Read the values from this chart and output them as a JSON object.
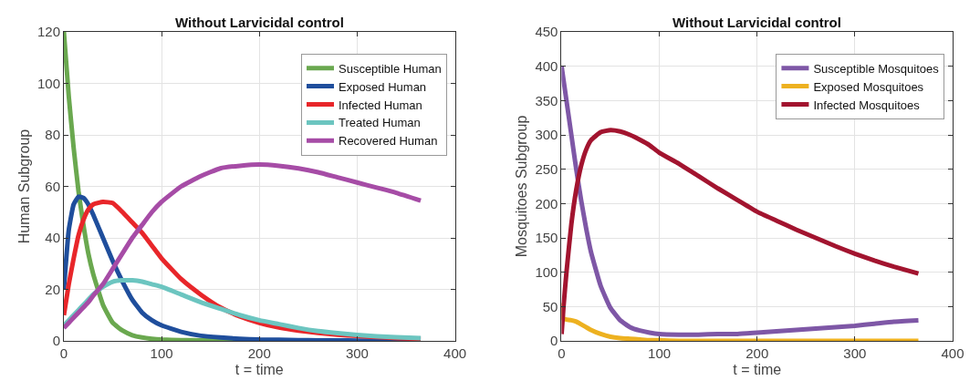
{
  "chart_data": [
    {
      "type": "line",
      "title": "Without Larvicidal control",
      "xlabel": "t = time",
      "ylabel": "Human Subgroup",
      "x": [
        0,
        5,
        10,
        15,
        20,
        25,
        30,
        40,
        50,
        60,
        70,
        80,
        90,
        100,
        120,
        140,
        160,
        180,
        200,
        220,
        240,
        260,
        280,
        300,
        320,
        340,
        365
      ],
      "series": [
        {
          "name": "Susceptible Human",
          "color": "#6aa84f",
          "values": [
            120,
            95,
            75,
            58,
            45,
            34,
            26,
            14,
            7,
            4,
            2.2,
            1.3,
            0.8,
            0.5,
            0.3,
            0.2,
            0.1,
            0.1,
            0,
            null,
            null,
            null,
            null,
            null,
            null,
            null,
            null
          ]
        },
        {
          "name": "Exposed Human",
          "color": "#1f4e9c",
          "values": [
            20,
            43,
            53,
            56,
            55.5,
            53,
            49,
            40,
            31,
            23,
            16,
            11,
            8,
            6,
            3.5,
            2,
            1.3,
            0.8,
            0.5,
            0.4,
            0.3,
            0.2,
            0.2,
            0.1,
            0.1,
            0.1,
            0.1
          ]
        },
        {
          "name": "Infected Human",
          "color": "#e8262a",
          "values": [
            10,
            22,
            32,
            41,
            47,
            51,
            53,
            54,
            53.5,
            50,
            46,
            42,
            37,
            32,
            24,
            18,
            13,
            9.5,
            7,
            5.2,
            4,
            3.1,
            2.4,
            1.9,
            1.5,
            1.1,
            0.8
          ]
        },
        {
          "name": "Treated Human",
          "color": "#6cc5c0",
          "values": [
            6,
            8,
            10,
            12,
            14,
            16,
            18,
            21,
            23,
            23.5,
            23.5,
            23,
            22,
            21,
            18,
            15,
            12.5,
            10,
            8,
            6.5,
            5,
            3.8,
            3,
            2.3,
            1.8,
            1.4,
            1.1
          ]
        },
        {
          "name": "Recovered Human",
          "color": "#a64ca6",
          "values": [
            5,
            7,
            9,
            11,
            13,
            15,
            17.5,
            22,
            28,
            34,
            40,
            45,
            50,
            54,
            60,
            64,
            67,
            68,
            68.5,
            68,
            67,
            65.5,
            63.5,
            61.5,
            59.5,
            57.5,
            54.5
          ]
        }
      ],
      "xlim": [
        0,
        400
      ],
      "xticks": [
        0,
        100,
        200,
        300,
        400
      ],
      "ylim": [
        0,
        120
      ],
      "yticks": [
        0,
        20,
        40,
        60,
        80,
        100,
        120
      ],
      "grid": true,
      "legend": "top right"
    },
    {
      "type": "line",
      "title": "Without Larvicidal control",
      "xlabel": "t = time",
      "ylabel": "Mosquitoes Subgroup",
      "x": [
        0,
        2,
        5,
        10,
        15,
        20,
        25,
        30,
        40,
        50,
        60,
        70,
        80,
        90,
        100,
        120,
        140,
        160,
        180,
        200,
        220,
        240,
        260,
        280,
        300,
        320,
        340,
        365
      ],
      "series": [
        {
          "name": "Susceptible Mosquitoes",
          "color": "#7e57a6",
          "values": [
            400,
            380,
            350,
            300,
            250,
            205,
            165,
            130,
            80,
            48,
            30,
            20,
            15,
            12,
            10,
            9,
            9,
            10,
            10,
            12,
            14,
            16,
            18,
            20,
            22,
            25,
            28,
            30
          ]
        },
        {
          "name": "Exposed Mosquitoes",
          "color": "#edb120",
          "values": [
            55,
            32,
            31,
            30,
            28,
            24,
            20,
            16,
            10,
            6,
            4,
            3,
            2,
            1,
            1,
            0,
            0,
            0,
            0,
            0,
            0,
            0,
            0,
            0,
            0,
            0,
            0,
            0
          ]
        },
        {
          "name": "Infected Mosquitoes",
          "color": "#a2142f",
          "values": [
            10,
            50,
            100,
            170,
            220,
            255,
            278,
            292,
            304,
            307,
            305,
            300,
            293,
            285,
            274,
            258,
            240,
            222,
            205,
            188,
            175,
            162,
            150,
            138,
            127,
            117,
            108,
            98
          ]
        }
      ],
      "xlim": [
        0,
        400
      ],
      "xticks": [
        0,
        100,
        200,
        300,
        400
      ],
      "ylim": [
        0,
        450
      ],
      "yticks": [
        0,
        50,
        100,
        150,
        200,
        250,
        300,
        350,
        400,
        450
      ],
      "grid": true,
      "legend": "top right"
    }
  ]
}
